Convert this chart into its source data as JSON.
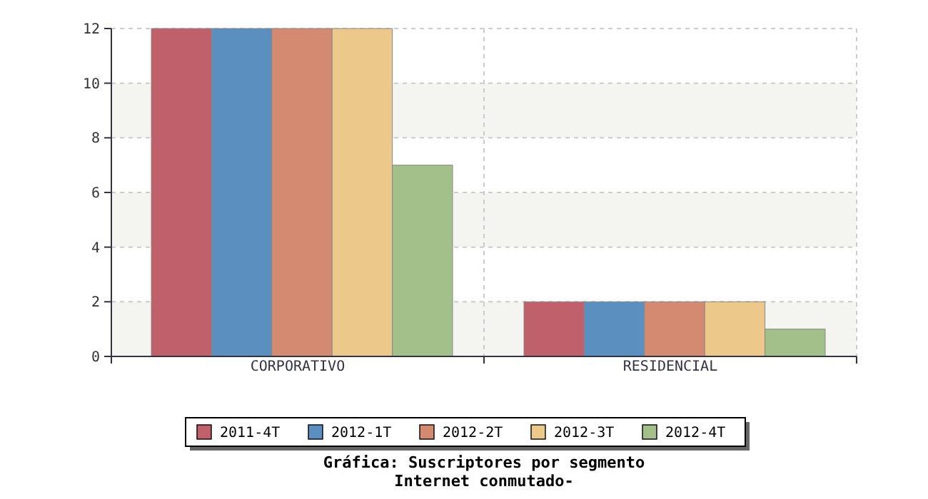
{
  "chart_data": {
    "type": "bar",
    "title": "Gráfica: Suscriptores por segmento",
    "subtitle": "Internet conmutado-",
    "categories": [
      "CORPORATIVO",
      "RESIDENCIAL"
    ],
    "series": [
      {
        "name": "2011-4T",
        "color": "#c0606a",
        "values": [
          12,
          2
        ]
      },
      {
        "name": "2012-1T",
        "color": "#5b8fc0",
        "values": [
          12,
          2
        ]
      },
      {
        "name": "2012-2T",
        "color": "#d48a70",
        "values": [
          12,
          2
        ]
      },
      {
        "name": "2012-3T",
        "color": "#ecc98a",
        "values": [
          12,
          2
        ]
      },
      {
        "name": "2012-4T",
        "color": "#a3bf8a",
        "values": [
          7,
          1
        ]
      }
    ],
    "ylim": [
      0,
      12
    ],
    "yticks": [
      0,
      2,
      4,
      6,
      8,
      10,
      12
    ],
    "grid": true,
    "legend": "bottom"
  }
}
